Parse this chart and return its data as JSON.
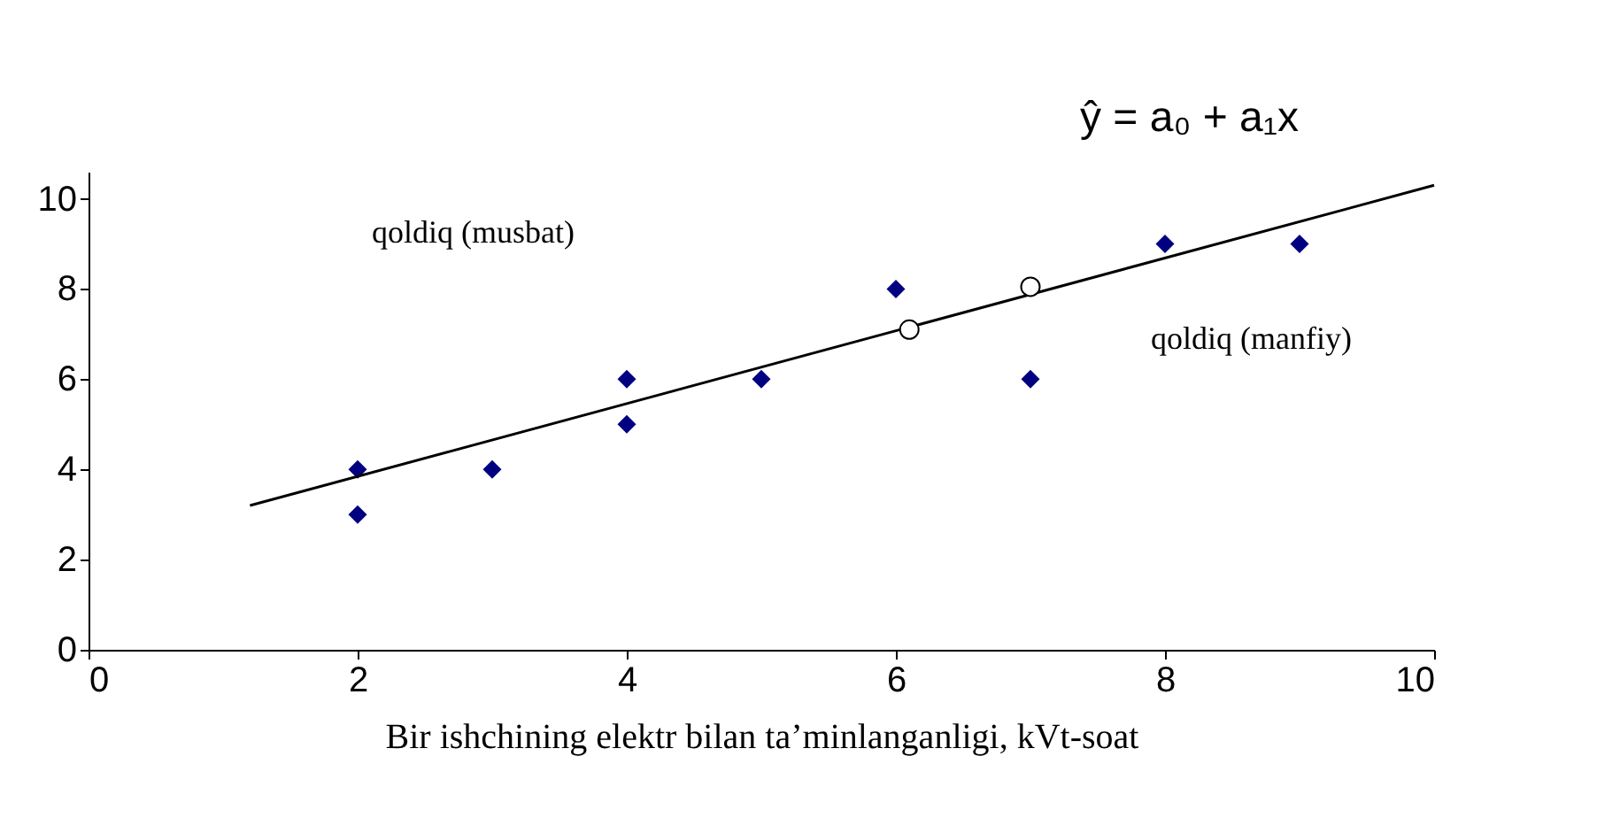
{
  "chart_data": {
    "type": "scatter",
    "xlabel": "Bir ishchining  elektr bilan ta’minlanganligi,  kVt-soat",
    "xlim": [
      0,
      10
    ],
    "xticks": [
      0,
      2,
      4,
      6,
      8,
      10
    ],
    "ylim": [
      0,
      10.6
    ],
    "yticks": [
      0,
      2,
      4,
      6,
      8,
      10
    ],
    "grid": false,
    "annotations": [
      "ŷ = a₀ + a₁x",
      "qoldiq (musbat)",
      "qoldiq (manfiy)"
    ],
    "series": [
      {
        "marker": "diamond",
        "color": "#000080",
        "x": [
          2,
          2,
          3,
          4,
          4,
          5,
          6,
          7,
          8,
          9
        ],
        "values": [
          4,
          3,
          4,
          6,
          5,
          6,
          8,
          6,
          9,
          9
        ]
      },
      {
        "type": "line",
        "marker": "none",
        "line_style": "solid",
        "color": "#000000",
        "x": [
          1.2,
          10
        ],
        "values": [
          3.2,
          10.3
        ]
      },
      {
        "marker": "circle",
        "color": "#ffffff",
        "x": [
          6.1,
          7
        ],
        "values": [
          7.1,
          8.05
        ]
      }
    ]
  }
}
